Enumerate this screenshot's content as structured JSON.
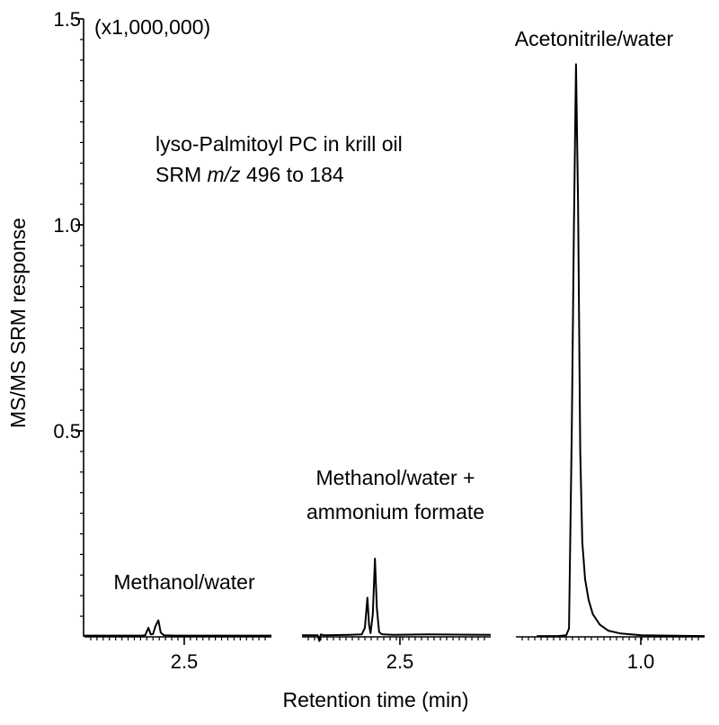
{
  "chart_data": {
    "type": "line",
    "ylabel": "MS/MS SRM response",
    "xlabel": "Retention time (min)",
    "y_multiplier": "(x1,000,000)",
    "ylim": [
      0,
      1.5
    ],
    "yticks": [
      {
        "value": 0.5,
        "label": "0.5"
      },
      {
        "value": 1.0,
        "label": "1.0"
      },
      {
        "value": 1.5,
        "label": "1.5"
      }
    ],
    "annotation": {
      "line1": "lyso-Palmitoyl PC in krill oil",
      "line2_prefix": "SRM ",
      "line2_italic": "m/z",
      "line2_suffix": " 496 to 184"
    },
    "panels": [
      {
        "name": "Methanol/water",
        "label_lines": [
          "Methanol/water"
        ],
        "xlim": [
          2.85,
          2.25
        ],
        "xtick": {
          "value": 2.5,
          "label": "2.5"
        },
        "series": [
          {
            "name": "Methanol/water",
            "x": [
              2.85,
              2.7,
              2.665,
              2.655,
              2.645,
              2.637,
              2.63,
              2.622,
              2.613,
              2.605,
              2.595,
              2.56,
              2.45,
              2.25
            ],
            "y": [
              0.003,
              0.003,
              0.003,
              0.004,
              0.022,
              0.006,
              0.007,
              0.026,
              0.04,
              0.01,
              0.004,
              0.003,
              0.003,
              0.003
            ]
          }
        ]
      },
      {
        "name": "Methanol/water + ammonium formate",
        "label_lines": [
          "Methanol/water +",
          "ammonium formate"
        ],
        "xlim": [
          2.85,
          2.25
        ],
        "xtick": {
          "value": 2.5,
          "label": "2.5"
        },
        "series": [
          {
            "name": "Methanol/water + ammonium formate",
            "x": [
              2.85,
              2.8,
              2.795,
              2.79,
              2.78,
              2.7,
              2.66,
              2.65,
              2.642,
              2.637,
              2.632,
              2.625,
              2.618,
              2.612,
              2.605,
              2.598,
              2.59,
              2.56,
              2.45,
              2.25
            ],
            "y": [
              0.004,
              0.004,
              -0.01,
              0.006,
              0.004,
              0.005,
              0.006,
              0.022,
              0.095,
              0.03,
              0.009,
              0.055,
              0.19,
              0.07,
              0.012,
              0.007,
              0.006,
              0.005,
              0.006,
              0.005
            ]
          }
        ]
      },
      {
        "name": "Acetonitrile/water",
        "label_lines": [
          "Acetonitrile/water"
        ],
        "xlim": [
          1.15,
          0.88
        ],
        "xtick": {
          "value": 1.0,
          "label": "1.0"
        },
        "series": [
          {
            "name": "Acetonitrile/water",
            "x": [
              1.12,
              1.09,
              1.078,
              1.074,
              1.07,
              1.067,
              1.064,
              1.061,
              1.058,
              1.055,
              1.051,
              1.046,
              1.04,
              1.03,
              1.018,
              1.0,
              0.97,
              0.88
            ],
            "y": [
              0.002,
              0.002,
              0.004,
              0.02,
              0.5,
              1.0,
              1.39,
              1.05,
              0.45,
              0.23,
              0.14,
              0.09,
              0.055,
              0.03,
              0.015,
              0.008,
              0.004,
              0.002
            ]
          }
        ]
      }
    ]
  }
}
